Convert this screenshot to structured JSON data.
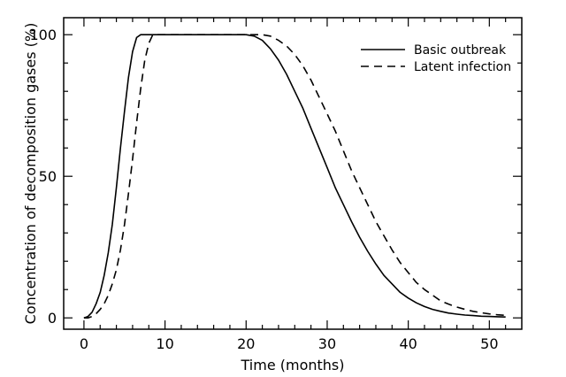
{
  "chart_data": {
    "type": "line",
    "xlabel": "Time (months)",
    "ylabel": "Concentration of decomposition gases (%)",
    "xlim": [
      -2.5,
      54
    ],
    "ylim": [
      -4,
      106
    ],
    "x_ticks": [
      "0",
      "10",
      "20",
      "30",
      "40",
      "50"
    ],
    "y_ticks": [
      "0",
      "50",
      "100"
    ],
    "grid": false,
    "legend_position": "top-right",
    "series": [
      {
        "name": "Basic outbreak",
        "style": "solid",
        "color": "#000000",
        "x": [
          0,
          0.5,
          1,
          1.5,
          2,
          2.5,
          3,
          3.5,
          4,
          4.5,
          5,
          5.5,
          6,
          6.5,
          7,
          8,
          10,
          12,
          14,
          16,
          18,
          20,
          21,
          22,
          23,
          24,
          25,
          26,
          27,
          28,
          29,
          30,
          31,
          32,
          33,
          34,
          35,
          36,
          37,
          38,
          39,
          40,
          41,
          42,
          43,
          44,
          45,
          46,
          47,
          48,
          49,
          50,
          51,
          52
        ],
        "y": [
          0,
          0.5,
          2,
          5,
          9,
          15,
          23,
          33,
          46,
          60,
          73,
          85,
          94,
          99,
          100,
          100,
          100,
          100,
          100,
          100,
          100,
          100,
          99.5,
          98,
          95,
          91,
          86,
          80,
          74,
          67,
          60,
          53,
          46,
          40,
          34,
          28.5,
          23.5,
          19,
          15,
          12,
          9,
          7,
          5.3,
          4,
          3,
          2.3,
          1.7,
          1.3,
          1,
          0.8,
          0.6,
          0.5,
          0.4,
          0.3
        ]
      },
      {
        "name": "Latent infection",
        "style": "dashed",
        "color": "#000000",
        "x": [
          0,
          0.5,
          1,
          1.5,
          2,
          2.5,
          3,
          3.5,
          4,
          4.5,
          5,
          5.5,
          6,
          6.5,
          7,
          7.5,
          8,
          8.5,
          10,
          12,
          14,
          16,
          18,
          20,
          22,
          23,
          24,
          25,
          26,
          27,
          28,
          29,
          30,
          31,
          32,
          33,
          34,
          35,
          36,
          37,
          38,
          39,
          40,
          41,
          42,
          43,
          44,
          45,
          46,
          47,
          48,
          49,
          50,
          51,
          52
        ],
        "y": [
          0,
          0,
          0.5,
          1.5,
          3,
          5,
          8,
          12,
          17,
          24,
          33,
          44,
          56,
          69,
          81,
          91,
          97,
          100,
          100,
          100,
          100,
          100,
          100,
          100,
          100,
          99.5,
          98,
          96,
          93,
          89,
          84,
          78,
          72,
          66,
          59,
          52,
          46,
          40,
          34,
          29,
          24,
          19.5,
          16,
          12.5,
          10,
          8,
          6,
          4.8,
          3.8,
          3,
          2.3,
          1.8,
          1.4,
          1.1,
          0.9
        ]
      }
    ]
  }
}
